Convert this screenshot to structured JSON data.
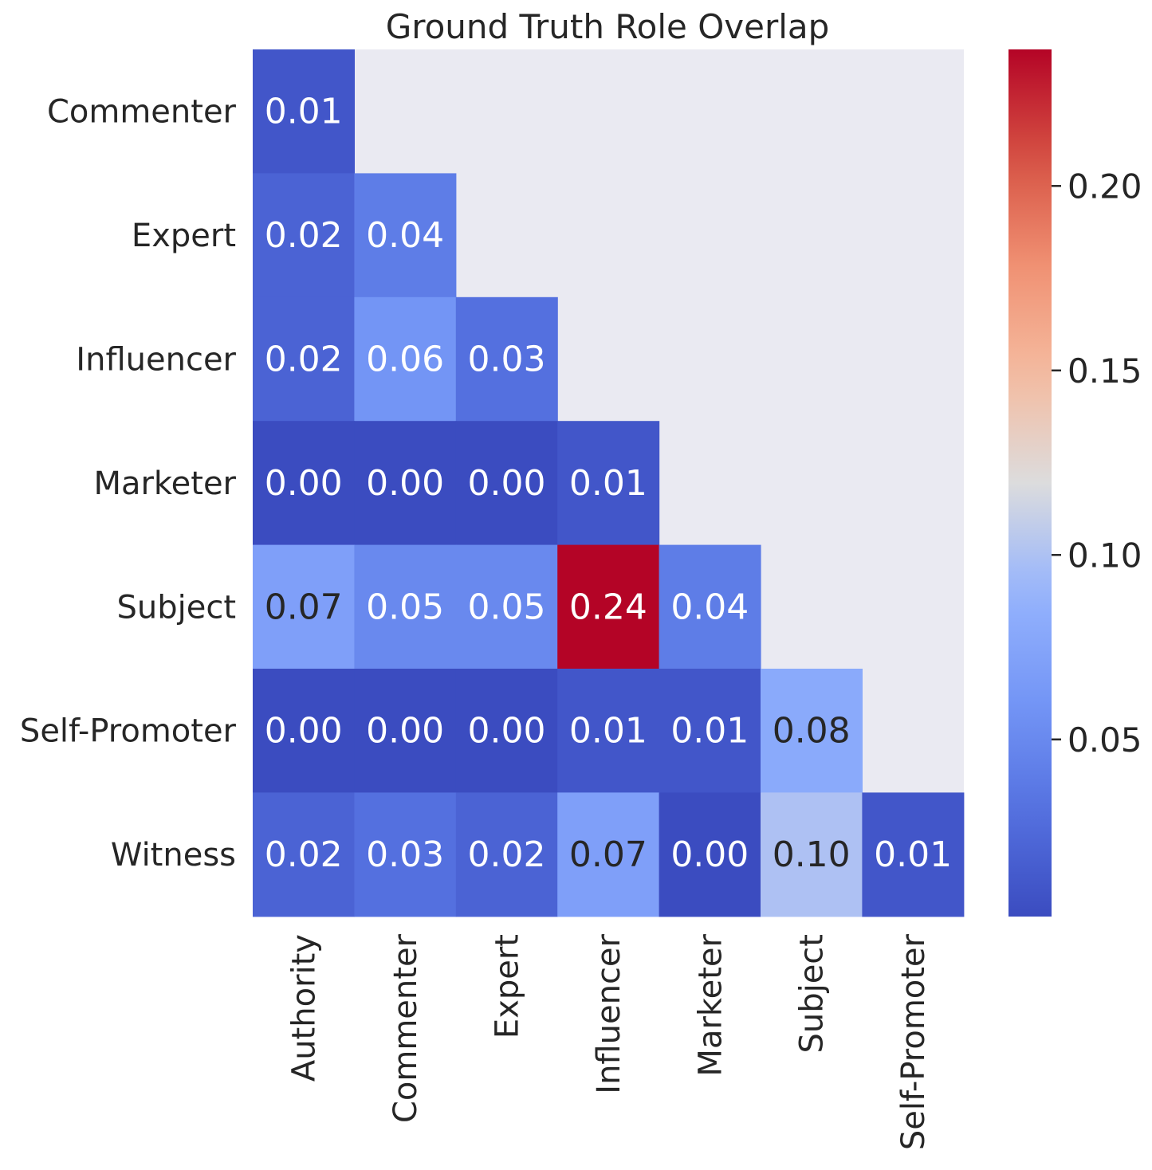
{
  "chart_data": {
    "type": "heatmap",
    "title": "Ground Truth Role Overlap",
    "xlabel": "",
    "ylabel": "",
    "x_categories": [
      "Authority",
      "Commenter",
      "Expert",
      "Influencer",
      "Marketer",
      "Subject",
      "Self-Promoter"
    ],
    "y_categories": [
      "Commenter",
      "Expert",
      "Influencer",
      "Marketer",
      "Subject",
      "Self-Promoter",
      "Witness"
    ],
    "values": [
      [
        0.01,
        null,
        null,
        null,
        null,
        null,
        null
      ],
      [
        0.02,
        0.04,
        null,
        null,
        null,
        null,
        null
      ],
      [
        0.02,
        0.06,
        0.03,
        null,
        null,
        null,
        null
      ],
      [
        0.0,
        0.0,
        0.0,
        0.01,
        null,
        null,
        null
      ],
      [
        0.07,
        0.05,
        0.05,
        0.24,
        0.04,
        null,
        null
      ],
      [
        0.0,
        0.0,
        0.0,
        0.01,
        0.01,
        0.08,
        null
      ],
      [
        0.02,
        0.03,
        0.02,
        0.07,
        0.0,
        0.1,
        0.01
      ]
    ],
    "annotations": [
      [
        "0.01",
        "",
        "",
        "",
        "",
        "",
        ""
      ],
      [
        "0.02",
        "0.04",
        "",
        "",
        "",
        "",
        ""
      ],
      [
        "0.02",
        "0.06",
        "0.03",
        "",
        "",
        "",
        ""
      ],
      [
        "0.00",
        "0.00",
        "0.00",
        "0.01",
        "",
        "",
        ""
      ],
      [
        "0.07",
        "0.05",
        "0.05",
        "0.24",
        "0.04",
        "",
        ""
      ],
      [
        "0.00",
        "0.00",
        "0.00",
        "0.01",
        "0.01",
        "0.08",
        ""
      ],
      [
        "0.02",
        "0.03",
        "0.02",
        "0.07",
        "0.00",
        "0.10",
        "0.01"
      ]
    ],
    "colormap": "coolwarm",
    "vmin": 0.002,
    "vmax": 0.237,
    "colorbar_ticks": [
      0.05,
      0.1,
      0.15,
      0.2
    ],
    "colorbar_tick_labels": [
      "0.05",
      "0.10",
      "0.15",
      "0.20"
    ],
    "masked_color": "#eaeaf2",
    "colors": {
      "text_dark": "#262626",
      "text_light": "#ffffff"
    }
  }
}
